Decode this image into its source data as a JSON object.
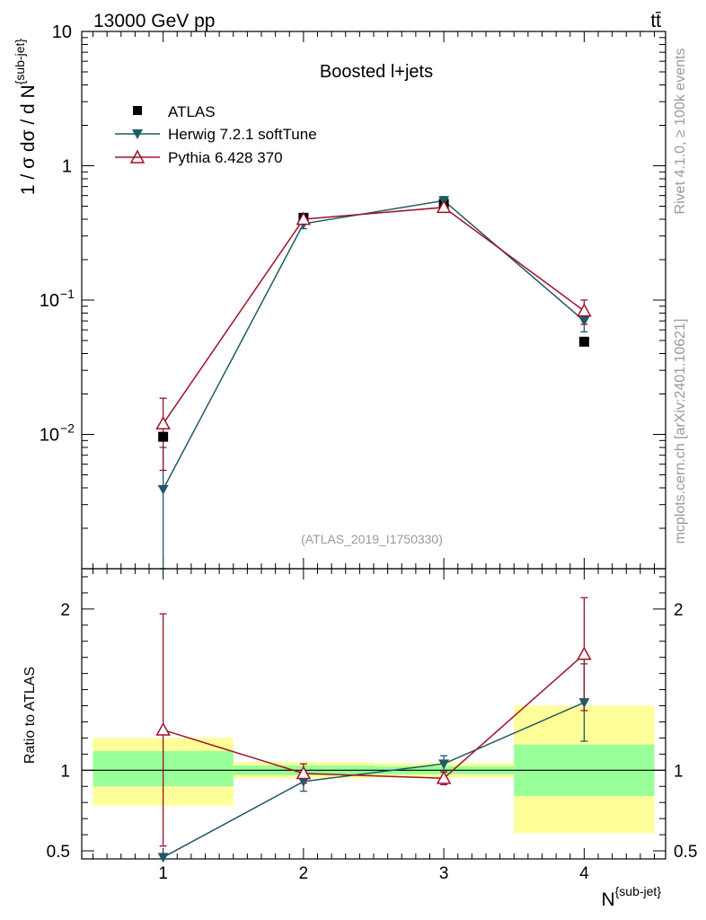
{
  "header": {
    "left_label": "13000 GeV pp",
    "right_label": "tt̄"
  },
  "side_labels": {
    "rivet": "Rivet 4.1.0, ≥ 100k events",
    "source": "mcplots.cern.ch [arXiv:2401.10621]"
  },
  "colors": {
    "data": "#000000",
    "herwig": "#1f5a66",
    "pythia": "#a0102a",
    "band_inner": "#99ff99",
    "band_outer": "#ffff99"
  },
  "chart_data": [
    {
      "type": "line",
      "panel": "main",
      "title": "Boosted l+jets",
      "watermark": "(ATLAS_2019_I1750330)",
      "ylabel": "1 / σ dσ / d N^{sub-jet}",
      "yscale": "log",
      "ylim": [
        0.001,
        10
      ],
      "xlim": [
        0.42,
        4.58
      ],
      "yticks": [
        {
          "value": 0.01,
          "label": "10",
          "exp": "−2"
        },
        {
          "value": 0.1,
          "label": "10",
          "exp": "−1"
        },
        {
          "value": 1,
          "label": "1",
          "exp": ""
        },
        {
          "value": 10,
          "label": "10",
          "exp": ""
        }
      ],
      "legend_position": "top-left",
      "x": [
        1,
        2,
        3,
        4
      ],
      "series": [
        {
          "name": "ATLAS",
          "marker": "square",
          "values": [
            0.0096,
            0.41,
            0.52,
            0.049
          ]
        },
        {
          "name": "Herwig 7.2.1 softTune",
          "marker": "triangle-down",
          "values": [
            0.0039,
            0.37,
            0.55,
            0.07
          ],
          "err_up": [
            0.0041,
            0.03,
            0.04,
            0.012
          ],
          "err_down": [
            0.0037,
            0.03,
            0.04,
            0.012
          ]
        },
        {
          "name": "Pythia 6.428 370",
          "marker": "triangle-up-open",
          "values": [
            0.012,
            0.4,
            0.49,
            0.083
          ],
          "err_up": [
            0.0066,
            0.03,
            0.03,
            0.017
          ],
          "err_down": [
            0.0066,
            0.03,
            0.03,
            0.017
          ]
        }
      ]
    },
    {
      "type": "line",
      "panel": "ratio",
      "ylabel": "Ratio to ATLAS",
      "xlabel": "N^{sub-jet}",
      "ylim": [
        0.45,
        2.25
      ],
      "xlim": [
        0.42,
        4.58
      ],
      "xticks": [
        "1",
        "2",
        "3",
        "4"
      ],
      "yticks": [
        "0.5",
        "1",
        "2"
      ],
      "x": [
        1,
        2,
        3,
        4
      ],
      "bands": [
        {
          "xlo": 0.5,
          "xhi": 1.5,
          "inner": [
            0.9,
            1.12
          ],
          "outer": [
            0.78,
            1.2
          ]
        },
        {
          "xlo": 1.5,
          "xhi": 2.5,
          "inner": [
            0.97,
            1.03
          ],
          "outer": [
            0.95,
            1.05
          ]
        },
        {
          "xlo": 2.5,
          "xhi": 3.5,
          "inner": [
            0.975,
            1.025
          ],
          "outer": [
            0.955,
            1.045
          ]
        },
        {
          "xlo": 3.5,
          "xhi": 4.5,
          "inner": [
            0.84,
            1.16
          ],
          "outer": [
            0.61,
            1.4
          ]
        }
      ],
      "series": [
        {
          "name": "Herwig 7.2.1 softTune",
          "values": [
            0.46,
            0.93,
            1.04,
            1.42
          ],
          "err_up": [
            0,
            0.06,
            0.05,
            0.24
          ],
          "err_down": [
            0,
            0.06,
            0.05,
            0.24
          ]
        },
        {
          "name": "Pythia 6.428 370",
          "values": [
            1.25,
            0.98,
            0.95,
            1.72
          ],
          "err_up": [
            0.72,
            0.06,
            0.04,
            0.35
          ],
          "err_down": [
            0.72,
            0.06,
            0.04,
            0.35
          ]
        }
      ]
    }
  ]
}
